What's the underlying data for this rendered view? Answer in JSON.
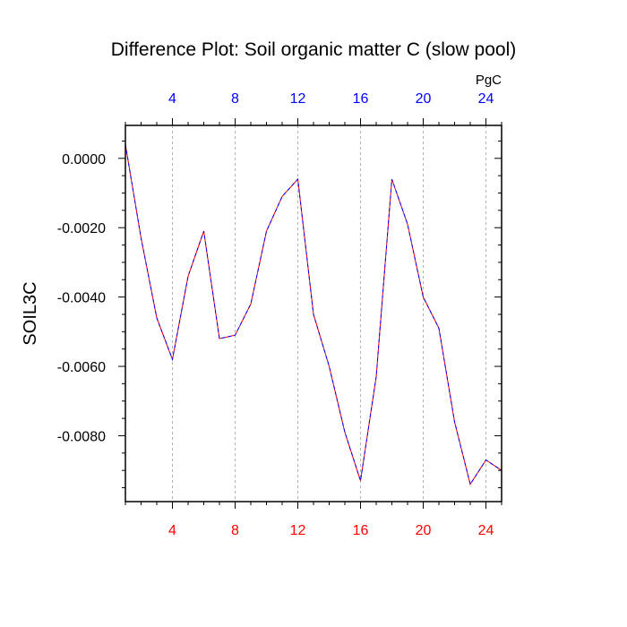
{
  "chart_data": {
    "type": "line",
    "title": "Difference Plot: Soil organic matter C (slow pool)",
    "units": "PgC",
    "ylabel": "SOIL3C",
    "xlabel": "",
    "xlim": [
      1,
      25
    ],
    "ylim": [
      -0.0099,
      0.00095
    ],
    "x_ticks": [
      4,
      8,
      12,
      16,
      20,
      24
    ],
    "x_tick_labels": [
      "4",
      "8",
      "12",
      "16",
      "20",
      "24"
    ],
    "y_ticks": [
      0.0,
      -0.002,
      -0.004,
      -0.006,
      -0.008
    ],
    "y_tick_labels": [
      "0.0000",
      "-0.0020",
      "-0.0040",
      "-0.0060",
      "-0.0080"
    ],
    "grid": "vertical dashed at x ticks",
    "colors": {
      "line_a": "#ff0000",
      "line_b": "#0000ff",
      "top_ticks": "#0000ff",
      "bottom_ticks": "#ff0000",
      "grid": "#b0b0b0"
    },
    "series": [
      {
        "x": [
          1,
          2,
          3,
          4,
          5,
          6,
          7,
          8,
          9,
          10,
          11,
          12,
          13,
          14,
          15,
          16,
          17,
          18,
          19,
          20,
          21,
          22,
          23,
          24,
          25
        ],
        "values": [
          0.0004,
          -0.0023,
          -0.0046,
          -0.0058,
          -0.0034,
          -0.0021,
          -0.0052,
          -0.0051,
          -0.0042,
          -0.0021,
          -0.0011,
          -0.0006,
          -0.0045,
          -0.006,
          -0.0079,
          -0.0093,
          -0.0063,
          -0.0006,
          -0.0019,
          -0.004,
          -0.0049,
          -0.0076,
          -0.0094,
          -0.0087,
          -0.009
        ]
      },
      {
        "x": [
          1,
          2,
          3,
          4,
          5,
          6,
          7,
          8,
          9,
          10,
          11,
          12,
          13,
          14,
          15,
          16,
          17,
          18,
          19,
          20,
          21,
          22,
          23,
          24,
          25
        ],
        "values": [
          0.0004,
          -0.0023,
          -0.0046,
          -0.0058,
          -0.0034,
          -0.0021,
          -0.0052,
          -0.0051,
          -0.0042,
          -0.0021,
          -0.0011,
          -0.0006,
          -0.0045,
          -0.006,
          -0.0079,
          -0.0093,
          -0.0063,
          -0.0006,
          -0.0019,
          -0.004,
          -0.0049,
          -0.0076,
          -0.0094,
          -0.0087,
          -0.009
        ]
      }
    ]
  }
}
